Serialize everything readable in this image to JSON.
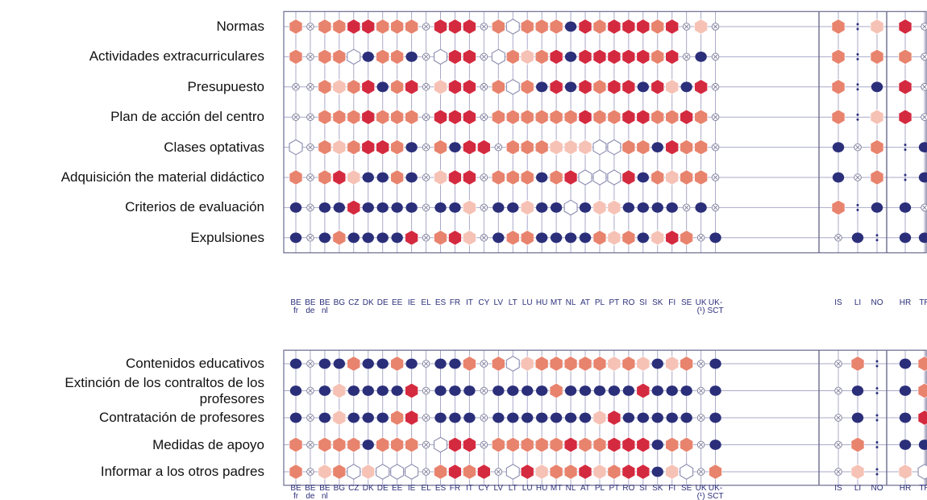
{
  "chart_data": {
    "type": "heatmap",
    "columns": [
      {
        "line1": "BE",
        "line2": "fr"
      },
      {
        "line1": "BE",
        "line2": "de"
      },
      {
        "line1": "BE",
        "line2": "nl"
      },
      {
        "line1": "BG",
        "line2": ""
      },
      {
        "line1": "CZ",
        "line2": ""
      },
      {
        "line1": "DK",
        "line2": ""
      },
      {
        "line1": "DE",
        "line2": ""
      },
      {
        "line1": "EE",
        "line2": ""
      },
      {
        "line1": "IE",
        "line2": ""
      },
      {
        "line1": "EL",
        "line2": ""
      },
      {
        "line1": "ES",
        "line2": ""
      },
      {
        "line1": "FR",
        "line2": ""
      },
      {
        "line1": "IT",
        "line2": ""
      },
      {
        "line1": "CY",
        "line2": ""
      },
      {
        "line1": "LV",
        "line2": ""
      },
      {
        "line1": "LT",
        "line2": ""
      },
      {
        "line1": "LU",
        "line2": ""
      },
      {
        "line1": "HU",
        "line2": ""
      },
      {
        "line1": "MT",
        "line2": ""
      },
      {
        "line1": "NL",
        "line2": ""
      },
      {
        "line1": "AT",
        "line2": ""
      },
      {
        "line1": "PL",
        "line2": ""
      },
      {
        "line1": "PT",
        "line2": ""
      },
      {
        "line1": "RO",
        "line2": ""
      },
      {
        "line1": "SI",
        "line2": ""
      },
      {
        "line1": "SK",
        "line2": ""
      },
      {
        "line1": "FI",
        "line2": ""
      },
      {
        "line1": "SE",
        "line2": ""
      },
      {
        "line1": "UK",
        "line2": "(¹)"
      },
      {
        "line1": "UK-",
        "line2": "SCT"
      },
      {
        "line1": "IS",
        "line2": ""
      },
      {
        "line1": "LI",
        "line2": ""
      },
      {
        "line1": "NO",
        "line2": ""
      },
      {
        "line1": "HR",
        "line2": ""
      },
      {
        "line1": "TR",
        "line2": ""
      }
    ],
    "panels": [
      {
        "rows": [
          {
            "label": "Normas",
            "cells": "3x3333333x333x033334333333xlx  3:1  3x"
          },
          {
            "label": "Actividades extracurriculares",
            "cells": "3x330433343x033x022343233333x4x  3:3  3x"
          },
          {
            "label": "Presupuesto",
            "cells": "x3324343x3x3x3032434233234433144x  3:4  3x"
          },
          {
            "label": "Plan de acción del centro",
            "cells": "x3333333x333x333333333333333x4x  3:1  3x"
          },
          {
            "label": "Clases optativas",
            "cells": "0x31333334x343x3331223003333343x4x  3:4  43"
          }
        ],
        "note": "x = not applicable marker, 0 = white outline hexagon, 1 = light pink, 2 = pale salmon, 3 = salmon/red, 4 = navy circle, : = no data"
      }
    ],
    "legend": [],
    "title": "",
    "xlabel": "",
    "ylabel": ""
  },
  "row_labels_top": [
    "Normas",
    "Actividades extracurriculares",
    "Presupuesto",
    "Plan de acción del centro",
    "Clases optativas",
    "Adquisición the material didáctico",
    "Criterios de evaluación",
    "Expulsiones"
  ],
  "row_labels_bottom": [
    "Contenidos educativos",
    "Extinción de los contraltos de los profesores",
    "Contratación de profesores",
    "Medidas de apoyo",
    "Informar a los otros padres"
  ],
  "grid_top": [
    "2x22332233x333x1022242333223xlx 2:1 3x",
    "2x2204224x033x0221342333222x4x 2:2 2x",
    "x211234213x1332x3x304433443323124 x 2:4 3x",
    "x222332223x333x2222223222233232x4x 2:1 3x",
    "0x211332224x4343x2223322002343224x4x 2:4 43"
  ],
  "colors": {
    "navy": "#2b2f7a",
    "red": "#d42a3f",
    "salmon": "#e8836e",
    "lightpink": "#f6c2b6",
    "grid": "#a9a9c9",
    "outline": "#8a8ab0"
  }
}
